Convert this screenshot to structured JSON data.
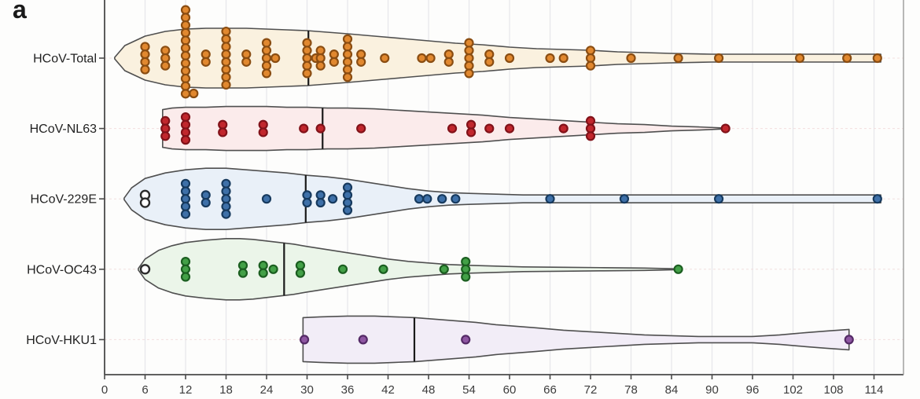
{
  "panel_label": "a",
  "colors": {
    "background": "#fdfdfc",
    "grid_vertical": "#e6e6ea",
    "grid_horizontal": "#f2dede",
    "spine": "#4a4a4a",
    "violin_outline": "#4f4f4f",
    "median_line": "#1a1a1a",
    "tick_text": "#3c3c3c",
    "row_label_text": "#222222",
    "open_dot_fill": "#ffffff",
    "open_dot_stroke": "#2b2b2b"
  },
  "chart_data": {
    "type": "violin-dotplot",
    "orientation": "horizontal",
    "x_ticks": [
      "0",
      "6",
      "12",
      "18",
      "24",
      "30",
      "36",
      "42",
      "48",
      "54",
      "60",
      "66",
      "72",
      "78",
      "84",
      "90",
      "96",
      "102",
      "108",
      "114"
    ],
    "x_range": [
      0,
      118
    ],
    "grid": true,
    "series": [
      {
        "name": "HCoV-Total",
        "dot_fill": "#e1882f",
        "dot_stroke": "#8a4d12",
        "violin_fill": "#faf1df",
        "median": 30.2,
        "violin": [
          [
            1.5,
            1
          ],
          [
            3,
            16
          ],
          [
            6,
            28
          ],
          [
            9,
            34
          ],
          [
            12,
            37
          ],
          [
            15,
            38
          ],
          [
            18,
            38
          ],
          [
            21,
            38
          ],
          [
            24,
            37
          ],
          [
            27,
            36
          ],
          [
            30,
            35
          ],
          [
            33,
            33
          ],
          [
            36,
            31
          ],
          [
            40,
            28
          ],
          [
            44,
            25
          ],
          [
            48,
            22
          ],
          [
            52,
            19
          ],
          [
            56,
            17
          ],
          [
            60,
            14
          ],
          [
            64,
            12
          ],
          [
            68,
            11
          ],
          [
            72,
            10
          ],
          [
            76,
            8
          ],
          [
            80,
            7
          ],
          [
            84,
            6
          ],
          [
            90,
            5
          ],
          [
            96,
            5
          ],
          [
            102,
            5
          ],
          [
            108,
            5
          ],
          [
            115,
            5
          ]
        ],
        "columns": [
          [
            6,
            4
          ],
          [
            9,
            3
          ],
          [
            12,
            12,
            -8
          ],
          [
            13.2,
            1,
            45
          ],
          [
            15,
            2
          ],
          [
            18,
            8
          ],
          [
            21,
            2
          ],
          [
            24,
            5
          ],
          [
            25.3,
            1
          ],
          [
            30,
            5
          ],
          [
            31.3,
            1
          ],
          [
            32,
            3
          ],
          [
            34,
            2
          ],
          [
            36,
            6
          ],
          [
            38,
            2
          ],
          [
            41.5,
            1
          ],
          [
            47,
            1
          ],
          [
            48.3,
            1
          ],
          [
            51,
            2
          ],
          [
            54,
            5
          ],
          [
            57,
            2
          ],
          [
            60,
            1
          ],
          [
            66,
            1
          ],
          [
            68,
            1
          ],
          [
            72,
            3
          ],
          [
            78,
            1
          ],
          [
            85,
            1
          ],
          [
            91,
            1
          ],
          [
            103,
            1
          ],
          [
            110,
            1
          ],
          [
            114.5,
            1
          ]
        ],
        "open_columns": []
      },
      {
        "name": "HCoV-NL63",
        "dot_fill": "#c1272d",
        "dot_stroke": "#811219",
        "violin_fill": "#fbebeb",
        "median": 32.3,
        "violin": [
          [
            8.6,
            24
          ],
          [
            10,
            26
          ],
          [
            12,
            27
          ],
          [
            15,
            27
          ],
          [
            18,
            28
          ],
          [
            21,
            28
          ],
          [
            24,
            28
          ],
          [
            27,
            27
          ],
          [
            30,
            27
          ],
          [
            33,
            26
          ],
          [
            36,
            26
          ],
          [
            40,
            25
          ],
          [
            44,
            23
          ],
          [
            48,
            21
          ],
          [
            52,
            19
          ],
          [
            56,
            17
          ],
          [
            60,
            14
          ],
          [
            64,
            12
          ],
          [
            68,
            10
          ],
          [
            72,
            8
          ],
          [
            76,
            6
          ],
          [
            80,
            5
          ],
          [
            84,
            3
          ],
          [
            88,
            2
          ],
          [
            92,
            0.5
          ]
        ],
        "columns": [
          [
            9,
            3
          ],
          [
            12,
            4
          ],
          [
            17.5,
            2
          ],
          [
            23.5,
            2
          ],
          [
            29.5,
            1
          ],
          [
            32,
            1
          ],
          [
            38,
            1
          ],
          [
            51.5,
            1
          ],
          [
            54.3,
            2
          ],
          [
            57,
            1
          ],
          [
            60,
            1
          ],
          [
            68,
            1
          ],
          [
            72,
            3
          ],
          [
            92,
            1
          ]
        ],
        "open_columns": []
      },
      {
        "name": "HCoV-229E",
        "dot_fill": "#3e70a8",
        "dot_stroke": "#173a5e",
        "violin_fill": "#e9f0f8",
        "median": 29.8,
        "violin": [
          [
            2.9,
            1
          ],
          [
            4,
            14
          ],
          [
            6,
            26
          ],
          [
            9,
            33
          ],
          [
            12,
            37
          ],
          [
            15,
            39
          ],
          [
            18,
            39
          ],
          [
            21,
            37
          ],
          [
            24,
            35
          ],
          [
            27,
            33
          ],
          [
            30,
            30
          ],
          [
            33,
            28
          ],
          [
            36,
            25
          ],
          [
            39,
            21
          ],
          [
            42,
            17
          ],
          [
            45,
            13
          ],
          [
            48,
            10
          ],
          [
            51,
            8
          ],
          [
            54,
            7
          ],
          [
            58,
            6
          ],
          [
            62,
            5
          ],
          [
            70,
            5
          ],
          [
            80,
            5
          ],
          [
            90,
            5
          ],
          [
            100,
            5
          ],
          [
            108,
            5
          ],
          [
            115,
            5
          ]
        ],
        "columns": [
          [
            12,
            5
          ],
          [
            15,
            2
          ],
          [
            18,
            5
          ],
          [
            24,
            1
          ],
          [
            30,
            2
          ],
          [
            32,
            2
          ],
          [
            33.8,
            1
          ],
          [
            36,
            4
          ],
          [
            46.6,
            1
          ],
          [
            47.8,
            1
          ],
          [
            50,
            1
          ],
          [
            52,
            1
          ],
          [
            66,
            1
          ],
          [
            77,
            1
          ],
          [
            91,
            1
          ],
          [
            114.5,
            1
          ]
        ],
        "open_columns": [
          [
            6,
            2
          ]
        ]
      },
      {
        "name": "HCoV-OC43",
        "dot_fill": "#43a047",
        "dot_stroke": "#1b5e20",
        "violin_fill": "#ebf5e9",
        "median": 26.6,
        "violin": [
          [
            5,
            1
          ],
          [
            6,
            13
          ],
          [
            8,
            24
          ],
          [
            10,
            30
          ],
          [
            12,
            34
          ],
          [
            15,
            37
          ],
          [
            18,
            39
          ],
          [
            20,
            39
          ],
          [
            22,
            38
          ],
          [
            24,
            36
          ],
          [
            26,
            34
          ],
          [
            28,
            32
          ],
          [
            30,
            29
          ],
          [
            33,
            25
          ],
          [
            36,
            21
          ],
          [
            39,
            17
          ],
          [
            42,
            13
          ],
          [
            45,
            10
          ],
          [
            48,
            8
          ],
          [
            51,
            6
          ],
          [
            54,
            5
          ],
          [
            58,
            4
          ],
          [
            62,
            3
          ],
          [
            68,
            2.5
          ],
          [
            74,
            2
          ],
          [
            80,
            1.5
          ],
          [
            85,
            0.5
          ]
        ],
        "columns": [
          [
            12,
            3
          ],
          [
            20.5,
            2
          ],
          [
            23.5,
            2
          ],
          [
            25,
            1
          ],
          [
            29,
            2
          ],
          [
            35.3,
            1
          ],
          [
            41.3,
            1
          ],
          [
            50.3,
            1
          ],
          [
            53.5,
            3
          ],
          [
            85,
            1
          ]
        ],
        "open_columns": [
          [
            6,
            1
          ]
        ]
      },
      {
        "name": "HCoV-HKU1",
        "dot_fill": "#8e56a2",
        "dot_stroke": "#542a66",
        "violin_fill": "#f2edf7",
        "median": 45.9,
        "violin": [
          [
            29.4,
            28
          ],
          [
            32,
            29
          ],
          [
            36,
            30
          ],
          [
            40,
            30
          ],
          [
            43,
            29
          ],
          [
            46,
            28
          ],
          [
            49,
            26
          ],
          [
            52,
            24
          ],
          [
            55,
            22
          ],
          [
            58,
            19
          ],
          [
            61,
            17
          ],
          [
            64,
            15
          ],
          [
            68,
            12
          ],
          [
            72,
            10
          ],
          [
            76,
            8
          ],
          [
            80,
            6
          ],
          [
            84,
            5
          ],
          [
            88,
            4
          ],
          [
            92,
            4
          ],
          [
            96,
            4
          ],
          [
            100,
            6
          ],
          [
            104,
            9
          ],
          [
            107,
            11
          ],
          [
            110.3,
            13
          ]
        ],
        "columns": [
          [
            29.6,
            1
          ],
          [
            38.3,
            1
          ],
          [
            53.5,
            1
          ],
          [
            110.3,
            1
          ]
        ],
        "open_columns": []
      }
    ]
  }
}
